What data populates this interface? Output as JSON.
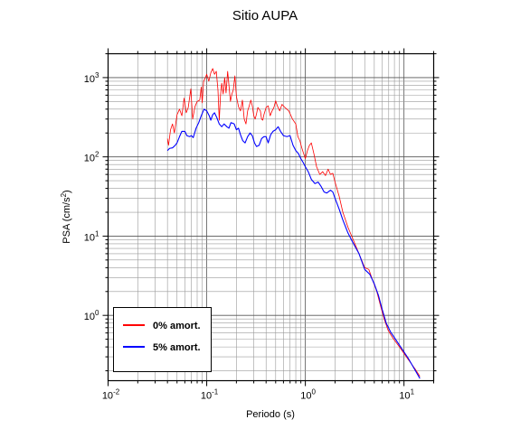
{
  "chart_data": {
    "type": "line",
    "title": "Sitio AUPA",
    "xlabel": "Periodo (s)",
    "ylabel_prefix": "PSA (cm/s",
    "ylabel_exp": "2",
    "ylabel_suffix": ")",
    "x_scale": "log",
    "y_scale": "log",
    "xlim": [
      0.01,
      20
    ],
    "ylim": [
      0.15,
      2000
    ],
    "grid": true,
    "legend_position": "bottom-left",
    "x_ticks": [
      {
        "value": 0.01,
        "base": "10",
        "exp": "-2"
      },
      {
        "value": 0.1,
        "base": "10",
        "exp": "-1"
      },
      {
        "value": 1,
        "base": "10",
        "exp": "0"
      },
      {
        "value": 10,
        "base": "10",
        "exp": "1"
      }
    ],
    "y_ticks": [
      {
        "value": 1,
        "base": "10",
        "exp": "0"
      },
      {
        "value": 10,
        "base": "10",
        "exp": "1"
      },
      {
        "value": 100,
        "base": "10",
        "exp": "2"
      },
      {
        "value": 1000,
        "base": "10",
        "exp": "3"
      }
    ],
    "series": [
      {
        "name": "0% amort.",
        "color": "#ff0000",
        "width": 0.8,
        "points": [
          [
            0.04,
            170
          ],
          [
            0.041,
            140
          ],
          [
            0.043,
            220
          ],
          [
            0.045,
            260
          ],
          [
            0.047,
            200
          ],
          [
            0.05,
            340
          ],
          [
            0.053,
            400
          ],
          [
            0.056,
            330
          ],
          [
            0.059,
            550
          ],
          [
            0.062,
            360
          ],
          [
            0.065,
            420
          ],
          [
            0.069,
            720
          ],
          [
            0.072,
            300
          ],
          [
            0.076,
            430
          ],
          [
            0.08,
            500
          ],
          [
            0.085,
            520
          ],
          [
            0.088,
            760
          ],
          [
            0.09,
            480
          ],
          [
            0.093,
            900
          ],
          [
            0.097,
            1000
          ],
          [
            0.1,
            1100
          ],
          [
            0.105,
            900
          ],
          [
            0.11,
            1150
          ],
          [
            0.115,
            1300
          ],
          [
            0.12,
            1100
          ],
          [
            0.125,
            1200
          ],
          [
            0.13,
            700
          ],
          [
            0.134,
            290
          ],
          [
            0.138,
            600
          ],
          [
            0.142,
            850
          ],
          [
            0.147,
            620
          ],
          [
            0.152,
            1000
          ],
          [
            0.157,
            640
          ],
          [
            0.163,
            1200
          ],
          [
            0.168,
            800
          ],
          [
            0.174,
            500
          ],
          [
            0.18,
            620
          ],
          [
            0.186,
            700
          ],
          [
            0.193,
            1050
          ],
          [
            0.2,
            580
          ],
          [
            0.21,
            430
          ],
          [
            0.22,
            380
          ],
          [
            0.23,
            520
          ],
          [
            0.24,
            300
          ],
          [
            0.25,
            260
          ],
          [
            0.26,
            380
          ],
          [
            0.27,
            440
          ],
          [
            0.28,
            520
          ],
          [
            0.29,
            440
          ],
          [
            0.3,
            330
          ],
          [
            0.31,
            300
          ],
          [
            0.32,
            350
          ],
          [
            0.33,
            420
          ],
          [
            0.35,
            380
          ],
          [
            0.36,
            300
          ],
          [
            0.37,
            290
          ],
          [
            0.38,
            340
          ],
          [
            0.4,
            420
          ],
          [
            0.42,
            440
          ],
          [
            0.44,
            330
          ],
          [
            0.46,
            380
          ],
          [
            0.48,
            420
          ],
          [
            0.5,
            510
          ],
          [
            0.52,
            440
          ],
          [
            0.55,
            380
          ],
          [
            0.58,
            460
          ],
          [
            0.62,
            420
          ],
          [
            0.68,
            380
          ],
          [
            0.74,
            300
          ],
          [
            0.8,
            260
          ],
          [
            0.84,
            180
          ],
          [
            0.88,
            160
          ],
          [
            0.92,
            130
          ],
          [
            0.96,
            110
          ],
          [
            1.0,
            95
          ],
          [
            1.05,
            120
          ],
          [
            1.1,
            140
          ],
          [
            1.15,
            150
          ],
          [
            1.22,
            110
          ],
          [
            1.3,
            75
          ],
          [
            1.4,
            60
          ],
          [
            1.5,
            65
          ],
          [
            1.6,
            58
          ],
          [
            1.7,
            70
          ],
          [
            1.8,
            60
          ],
          [
            1.9,
            62
          ],
          [
            2.0,
            48
          ],
          [
            2.2,
            32
          ],
          [
            2.4,
            20
          ],
          [
            2.7,
            13
          ],
          [
            3.0,
            9.5
          ],
          [
            3.5,
            6
          ],
          [
            4.0,
            4.0
          ],
          [
            4.4,
            3.8
          ],
          [
            4.8,
            2.8
          ],
          [
            5.3,
            2.0
          ],
          [
            5.8,
            1.3
          ],
          [
            6.3,
            0.9
          ],
          [
            6.9,
            0.65
          ],
          [
            7.7,
            0.52
          ],
          [
            9.0,
            0.4
          ],
          [
            11.0,
            0.28
          ],
          [
            13.0,
            0.21
          ],
          [
            14.5,
            0.17
          ]
        ]
      },
      {
        "name": "5% amort.",
        "color": "#0000ff",
        "width": 1.1,
        "points": [
          [
            0.04,
            120
          ],
          [
            0.042,
            128
          ],
          [
            0.045,
            130
          ],
          [
            0.048,
            140
          ],
          [
            0.05,
            150
          ],
          [
            0.053,
            180
          ],
          [
            0.056,
            210
          ],
          [
            0.06,
            210
          ],
          [
            0.063,
            185
          ],
          [
            0.067,
            180
          ],
          [
            0.07,
            185
          ],
          [
            0.073,
            175
          ],
          [
            0.078,
            230
          ],
          [
            0.083,
            270
          ],
          [
            0.088,
            330
          ],
          [
            0.094,
            400
          ],
          [
            0.1,
            380
          ],
          [
            0.106,
            330
          ],
          [
            0.11,
            290
          ],
          [
            0.115,
            340
          ],
          [
            0.12,
            360
          ],
          [
            0.127,
            310
          ],
          [
            0.134,
            260
          ],
          [
            0.142,
            240
          ],
          [
            0.15,
            260
          ],
          [
            0.16,
            240
          ],
          [
            0.168,
            230
          ],
          [
            0.176,
            270
          ],
          [
            0.184,
            265
          ],
          [
            0.19,
            260
          ],
          [
            0.2,
            220
          ],
          [
            0.21,
            230
          ],
          [
            0.22,
            190
          ],
          [
            0.232,
            160
          ],
          [
            0.245,
            150
          ],
          [
            0.26,
            180
          ],
          [
            0.275,
            200
          ],
          [
            0.29,
            185
          ],
          [
            0.305,
            150
          ],
          [
            0.32,
            135
          ],
          [
            0.34,
            140
          ],
          [
            0.36,
            170
          ],
          [
            0.38,
            180
          ],
          [
            0.4,
            180
          ],
          [
            0.42,
            150
          ],
          [
            0.445,
            190
          ],
          [
            0.47,
            210
          ],
          [
            0.5,
            220
          ],
          [
            0.53,
            240
          ],
          [
            0.56,
            210
          ],
          [
            0.6,
            185
          ],
          [
            0.65,
            180
          ],
          [
            0.7,
            185
          ],
          [
            0.75,
            140
          ],
          [
            0.8,
            120
          ],
          [
            0.85,
            110
          ],
          [
            0.9,
            95
          ],
          [
            0.95,
            85
          ],
          [
            1.0,
            75
          ],
          [
            1.07,
            65
          ],
          [
            1.15,
            52
          ],
          [
            1.25,
            46
          ],
          [
            1.35,
            48
          ],
          [
            1.45,
            42
          ],
          [
            1.55,
            36
          ],
          [
            1.65,
            35
          ],
          [
            1.8,
            38
          ],
          [
            1.9,
            36
          ],
          [
            2.0,
            30
          ],
          [
            2.2,
            22
          ],
          [
            2.4,
            16
          ],
          [
            2.7,
            11
          ],
          [
            3.0,
            8.5
          ],
          [
            3.5,
            6
          ],
          [
            4.0,
            3.8
          ],
          [
            4.5,
            3.3
          ],
          [
            5.0,
            2.5
          ],
          [
            5.5,
            1.8
          ],
          [
            6.0,
            1.2
          ],
          [
            6.6,
            0.8
          ],
          [
            7.3,
            0.62
          ],
          [
            8.2,
            0.5
          ],
          [
            9.5,
            0.38
          ],
          [
            11.0,
            0.29
          ],
          [
            12.5,
            0.22
          ],
          [
            14.5,
            0.16
          ]
        ]
      }
    ]
  }
}
